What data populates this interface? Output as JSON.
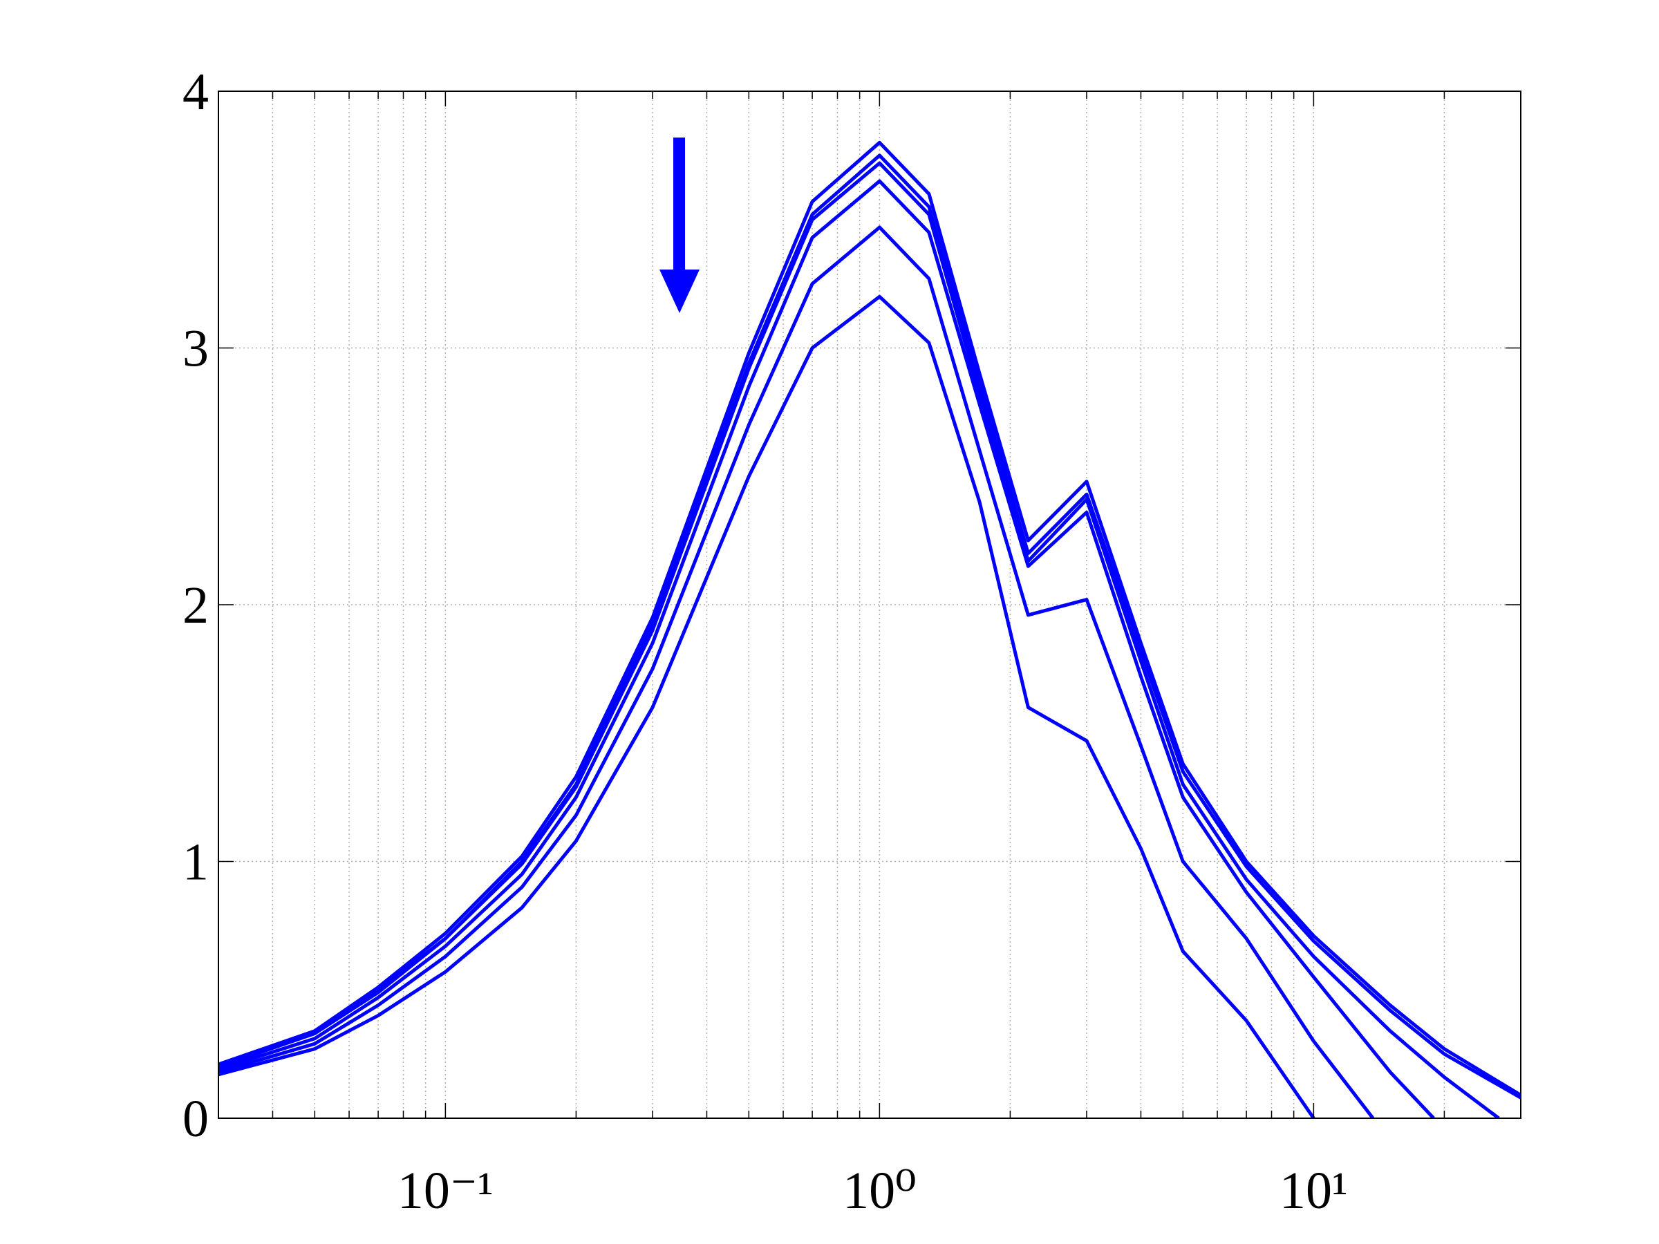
{
  "chart_data": {
    "type": "line",
    "color": "#0000ff",
    "xscale": "log",
    "grid": true,
    "xlim": [
      0.03,
      30
    ],
    "ylim": [
      0,
      4
    ],
    "xticks": [
      {
        "value": 0.1,
        "label": "10⁻¹"
      },
      {
        "value": 1,
        "label": "10⁰"
      },
      {
        "value": 10,
        "label": "10¹"
      }
    ],
    "yticks": [
      0,
      1,
      2,
      3,
      4
    ],
    "series": [
      {
        "x": [
          0.03,
          0.05,
          0.07,
          0.1,
          0.15,
          0.2,
          0.3,
          0.5,
          0.7,
          1,
          1.3,
          1.7,
          2.2,
          3,
          4,
          5,
          7,
          10,
          15,
          20,
          30
        ],
        "values": [
          0.21,
          0.34,
          0.51,
          0.72,
          1.02,
          1.33,
          1.95,
          2.98,
          3.57,
          3.8,
          3.6,
          2.9,
          2.25,
          2.48,
          1.85,
          1.38,
          1.0,
          0.71,
          0.44,
          0.27,
          0.09
        ]
      },
      {
        "x": [
          0.03,
          0.05,
          0.07,
          0.1,
          0.15,
          0.2,
          0.3,
          0.5,
          0.7,
          1,
          1.3,
          1.7,
          2.2,
          3,
          4,
          5,
          7,
          10,
          15,
          20,
          30
        ],
        "values": [
          0.2,
          0.33,
          0.5,
          0.7,
          1.0,
          1.3,
          1.92,
          2.94,
          3.52,
          3.75,
          3.55,
          2.86,
          2.2,
          2.43,
          1.82,
          1.35,
          0.98,
          0.69,
          0.42,
          0.25,
          0.08
        ]
      },
      {
        "x": [
          0.03,
          0.05,
          0.07,
          0.1,
          0.15,
          0.2,
          0.3,
          0.5,
          0.7,
          1,
          1.3,
          1.7,
          2.2,
          3,
          4,
          5,
          7,
          10,
          15,
          20,
          26.7
        ],
        "values": [
          0.2,
          0.33,
          0.49,
          0.7,
          0.99,
          1.29,
          1.9,
          2.92,
          3.5,
          3.72,
          3.52,
          2.82,
          2.17,
          2.41,
          1.78,
          1.3,
          0.93,
          0.63,
          0.34,
          0.16,
          0
        ]
      },
      {
        "x": [
          0.03,
          0.05,
          0.07,
          0.1,
          0.15,
          0.2,
          0.3,
          0.5,
          0.7,
          1,
          1.3,
          1.7,
          2.2,
          3,
          4,
          5,
          7,
          10,
          15,
          18.9
        ],
        "values": [
          0.19,
          0.31,
          0.47,
          0.67,
          0.95,
          1.25,
          1.85,
          2.85,
          3.43,
          3.65,
          3.45,
          2.78,
          2.15,
          2.36,
          1.72,
          1.25,
          0.88,
          0.55,
          0.18,
          0
        ]
      },
      {
        "x": [
          0.03,
          0.05,
          0.07,
          0.1,
          0.15,
          0.2,
          0.3,
          0.5,
          0.7,
          1,
          1.3,
          1.7,
          2.2,
          3,
          4,
          5,
          7,
          10,
          13.7
        ],
        "values": [
          0.18,
          0.29,
          0.44,
          0.63,
          0.9,
          1.18,
          1.75,
          2.7,
          3.25,
          3.47,
          3.27,
          2.6,
          1.96,
          2.02,
          1.45,
          1.0,
          0.7,
          0.3,
          0
        ]
      },
      {
        "x": [
          0.03,
          0.05,
          0.07,
          0.1,
          0.15,
          0.2,
          0.3,
          0.5,
          0.7,
          1,
          1.3,
          1.7,
          2.2,
          3,
          4,
          5,
          7,
          10
        ],
        "values": [
          0.17,
          0.27,
          0.4,
          0.57,
          0.82,
          1.08,
          1.6,
          2.5,
          3.0,
          3.2,
          3.02,
          2.4,
          1.6,
          1.47,
          1.05,
          0.65,
          0.38,
          0
        ]
      }
    ]
  }
}
